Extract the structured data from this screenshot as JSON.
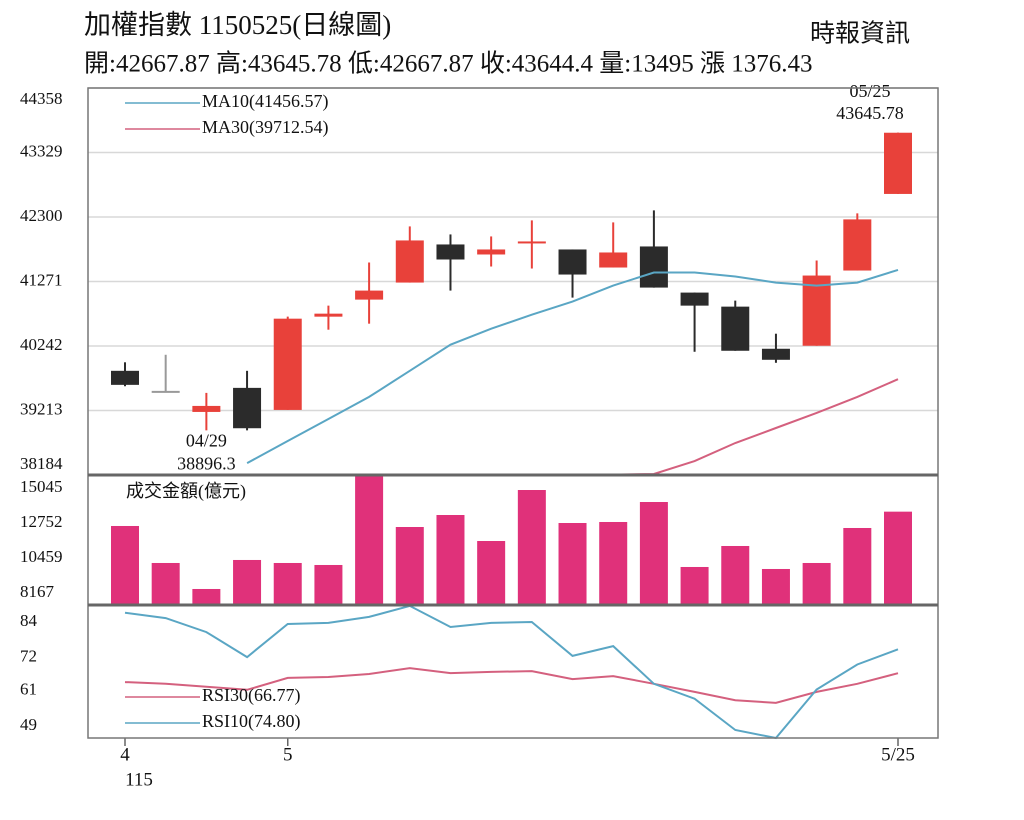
{
  "chart_data": [
    {
      "type": "candlestick",
      "title": "加權指數 1150525(日線圖)",
      "source": "時報資訊",
      "info": "開:42667.87 高:43645.78 低:42667.87 收:43644.4 量:13495 漲 1376.43",
      "categories": [
        "4",
        null,
        null,
        null,
        "5",
        null,
        null,
        null,
        null,
        null,
        null,
        null,
        null,
        null,
        null,
        null,
        null,
        null,
        null,
        "5/25"
      ],
      "year_label": "115",
      "open": [
        39846,
        39526,
        39190,
        39574,
        39222,
        40710,
        40982,
        41254,
        41862,
        41702,
        41894,
        41782,
        41494,
        41830,
        41094,
        40870,
        40198,
        40246,
        41446,
        42667.87
      ],
      "high": [
        39982,
        40102,
        39494,
        39846,
        40710,
        40886,
        41574,
        42150,
        42022,
        41990,
        42246,
        41782,
        42214,
        42406,
        41094,
        40966,
        40438,
        41606,
        42358,
        43645.78
      ],
      "low": [
        39600,
        39510,
        38896.3,
        38896.3,
        39222,
        40502,
        40598,
        41254,
        41126,
        41510,
        41478,
        41014,
        41494,
        41174,
        40150,
        40166,
        39974,
        40246,
        41446,
        42667.87
      ],
      "close": [
        39622,
        39526,
        39286,
        38930,
        40678,
        40758,
        41126,
        41926,
        41622,
        41782,
        41910,
        41382,
        41734,
        41174,
        40886,
        40166,
        40022,
        41366,
        42262,
        43644.4
      ],
      "up_color": "#e8413a",
      "down_color": "#2b2b2b",
      "flat_color": "#999999",
      "series": [
        {
          "name": "MA10(41456.57)",
          "color": "#5aa6c4",
          "values": [
            null,
            null,
            null,
            38374,
            38726,
            39078,
            39430,
            39846,
            40262,
            40518,
            40742,
            40950,
            41206,
            41414,
            41414,
            41350,
            41254,
            41206,
            41254,
            41456.57
          ]
        },
        {
          "name": "MA30(39712.54)",
          "color": "#d4607e",
          "values": [
            null,
            null,
            null,
            null,
            null,
            null,
            null,
            null,
            null,
            null,
            null,
            null,
            38190,
            38200,
            38406,
            38694,
            38934,
            39174,
            39430,
            39712.54
          ]
        }
      ],
      "annotations": [
        {
          "index": 19,
          "date": "05/25",
          "value": 43645.78,
          "label": "43645.78"
        },
        {
          "index": 2,
          "date": "04/29",
          "value": 38896.3,
          "label": "38896.3"
        }
      ],
      "ylim": [
        38184,
        44358
      ],
      "yticks": [
        38184,
        39213,
        40242,
        41271,
        42300,
        43329,
        44358
      ],
      "grid": true
    },
    {
      "type": "bar",
      "title": "成交金額(億元)",
      "values": [
        12556,
        10133,
        8430,
        10330,
        10133,
        10002,
        15896,
        12490,
        13276,
        11573,
        14913,
        12752,
        12818,
        14127,
        9871,
        11246,
        9740,
        10133,
        12425,
        13495
      ],
      "color": "#e0317a",
      "ylim": [
        7381,
        15896
      ],
      "yticks": [
        8167,
        10459,
        12752,
        15045
      ]
    },
    {
      "type": "line",
      "series": [
        {
          "name": "RSI30(66.77)",
          "color": "#d4607e",
          "values": [
            63.8,
            63.2,
            62.2,
            61.2,
            65.2,
            65.5,
            66.5,
            68.5,
            66.8,
            67.2,
            67.5,
            64.8,
            65.8,
            63.2,
            60.5,
            57.7,
            56.8,
            60.5,
            63.2,
            66.77
          ]
        },
        {
          "name": "RSI10(74.80)",
          "color": "#5aa6c4",
          "values": [
            87.1,
            85.3,
            80.6,
            72.2,
            83.3,
            83.7,
            85.7,
            89.4,
            82.3,
            83.7,
            84,
            72.6,
            75.9,
            63.2,
            58.2,
            47.7,
            45,
            61.3,
            69.7,
            74.8
          ]
        }
      ],
      "ylim": [
        45,
        89.7
      ],
      "yticks": [
        49,
        61,
        72,
        84
      ]
    }
  ]
}
